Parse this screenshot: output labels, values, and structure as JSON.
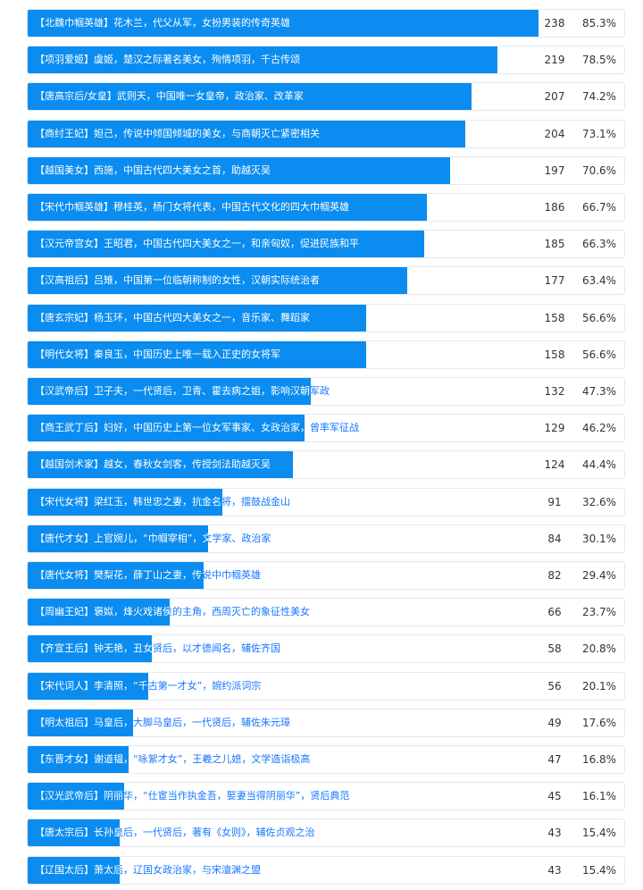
{
  "options": [
    {
      "text": "【北魏巾帼英雄】花木兰，代父从军，女扮男装的传奇英雄",
      "votes": 238,
      "percent": 85.3,
      "percent_label": "85.3%"
    },
    {
      "text": "【项羽爱姬】虞姬，楚汉之际著名美女，殉情项羽，千古传颂",
      "votes": 219,
      "percent": 78.5,
      "percent_label": "78.5%"
    },
    {
      "text": "【唐高宗后/女皇】武则天，中国唯一女皇帝，政治家、改革家",
      "votes": 207,
      "percent": 74.2,
      "percent_label": "74.2%"
    },
    {
      "text": "【商纣王妃】妲己，传说中倾国倾城的美女，与商朝灭亡紧密相关",
      "votes": 204,
      "percent": 73.1,
      "percent_label": "73.1%"
    },
    {
      "text": "【越国美女】西施，中国古代四大美女之首，助越灭吴",
      "votes": 197,
      "percent": 70.6,
      "percent_label": "70.6%"
    },
    {
      "text": "【宋代巾帼英雄】穆桂英，杨门女将代表，中国古代文化的四大巾帼英雄",
      "votes": 186,
      "percent": 66.7,
      "percent_label": "66.7%"
    },
    {
      "text": "【汉元帝宫女】王昭君，中国古代四大美女之一，和亲匈奴，促进民族和平",
      "votes": 185,
      "percent": 66.3,
      "percent_label": "66.3%"
    },
    {
      "text": "【汉高祖后】吕雉，中国第一位临朝称制的女性，汉朝实际统治者",
      "votes": 177,
      "percent": 63.4,
      "percent_label": "63.4%"
    },
    {
      "text": "【唐玄宗妃】杨玉环，中国古代四大美女之一，音乐家、舞蹈家",
      "votes": 158,
      "percent": 56.6,
      "percent_label": "56.6%"
    },
    {
      "text": "【明代女将】秦良玉，中国历史上唯一载入正史的女将军",
      "votes": 158,
      "percent": 56.6,
      "percent_label": "56.6%"
    },
    {
      "text": "【汉武帝后】卫子夫，一代贤后，卫青、霍去病之姐，影响汉朝军政",
      "votes": 132,
      "percent": 47.3,
      "percent_label": "47.3%"
    },
    {
      "text": "【商王武丁后】妇好，中国历史上第一位女军事家、女政治家，曾率军征战",
      "votes": 129,
      "percent": 46.2,
      "percent_label": "46.2%"
    },
    {
      "text": "【越国剑术家】越女，春秋女剑客，传授剑法助越灭吴",
      "votes": 124,
      "percent": 44.4,
      "percent_label": "44.4%"
    },
    {
      "text": "【宋代女将】梁红玉，韩世忠之妻，抗金名将，擂鼓战金山",
      "votes": 91,
      "percent": 32.6,
      "percent_label": "32.6%"
    },
    {
      "text": "【唐代才女】上官婉儿，“巾帼宰相”，文学家、政治家",
      "votes": 84,
      "percent": 30.1,
      "percent_label": "30.1%"
    },
    {
      "text": "【唐代女将】樊梨花，薛丁山之妻，传说中巾帼英雄",
      "votes": 82,
      "percent": 29.4,
      "percent_label": "29.4%"
    },
    {
      "text": "【周幽王妃】褒姒，烽火戏诸侯的主角，西周灭亡的象征性美女",
      "votes": 66,
      "percent": 23.7,
      "percent_label": "23.7%"
    },
    {
      "text": "【齐宣王后】钟无艳，丑女贤后，以才德闻名，辅佐齐国",
      "votes": 58,
      "percent": 20.8,
      "percent_label": "20.8%"
    },
    {
      "text": "【宋代词人】李清照，“千古第一才女”，婉约派词宗",
      "votes": 56,
      "percent": 20.1,
      "percent_label": "20.1%"
    },
    {
      "text": "【明太祖后】马皇后，大脚马皇后，一代贤后，辅佐朱元璋",
      "votes": 49,
      "percent": 17.6,
      "percent_label": "17.6%"
    },
    {
      "text": "【东晋才女】谢道韫，“咏絮才女”，王羲之儿媳，文学造诣极高",
      "votes": 47,
      "percent": 16.8,
      "percent_label": "16.8%"
    },
    {
      "text": "【汉光武帝后】阴丽华，“仕宦当作执金吾，娶妻当得阴丽华”，贤后典范",
      "votes": 45,
      "percent": 16.1,
      "percent_label": "16.1%"
    },
    {
      "text": "【唐太宗后】长孙皇后，一代贤后，著有《女则》，辅佐贞观之治",
      "votes": 43,
      "percent": 15.4,
      "percent_label": "15.4%"
    },
    {
      "text": "【辽国太后】萧太后，辽国女政治家，与宋澶渊之盟",
      "votes": 43,
      "percent": 15.4,
      "percent_label": "15.4%"
    }
  ]
}
